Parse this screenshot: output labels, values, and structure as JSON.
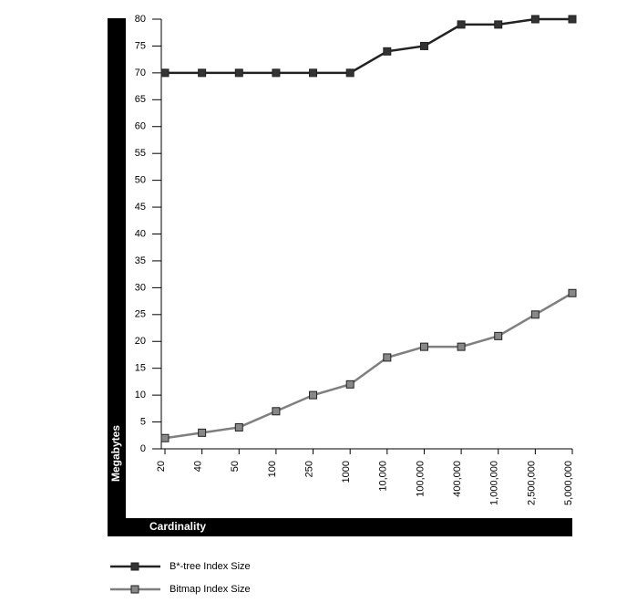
{
  "chart_data": {
    "type": "line",
    "x_label": "Cardinality",
    "y_label": "Megabytes",
    "categories": [
      "20",
      "40",
      "50",
      "100",
      "250",
      "1000",
      "10,000",
      "100,000",
      "400,000",
      "1,000,000",
      "2,500,000",
      "5,000,000"
    ],
    "series": [
      {
        "name": "B*-tree Index Size",
        "color": "#222222",
        "values": [
          70,
          70,
          70,
          70,
          70,
          70,
          74,
          75,
          79,
          79,
          80,
          80
        ]
      },
      {
        "name": "Bitmap Index Size",
        "color": "#7f7f7f",
        "values": [
          2,
          3,
          4,
          7,
          10,
          12,
          17,
          19,
          19,
          21,
          25,
          29
        ]
      }
    ],
    "ylim": [
      0,
      80
    ],
    "yticks": [
      0,
      5,
      10,
      15,
      20,
      25,
      30,
      35,
      40,
      45,
      50,
      55,
      60,
      65,
      70,
      75,
      80
    ]
  }
}
